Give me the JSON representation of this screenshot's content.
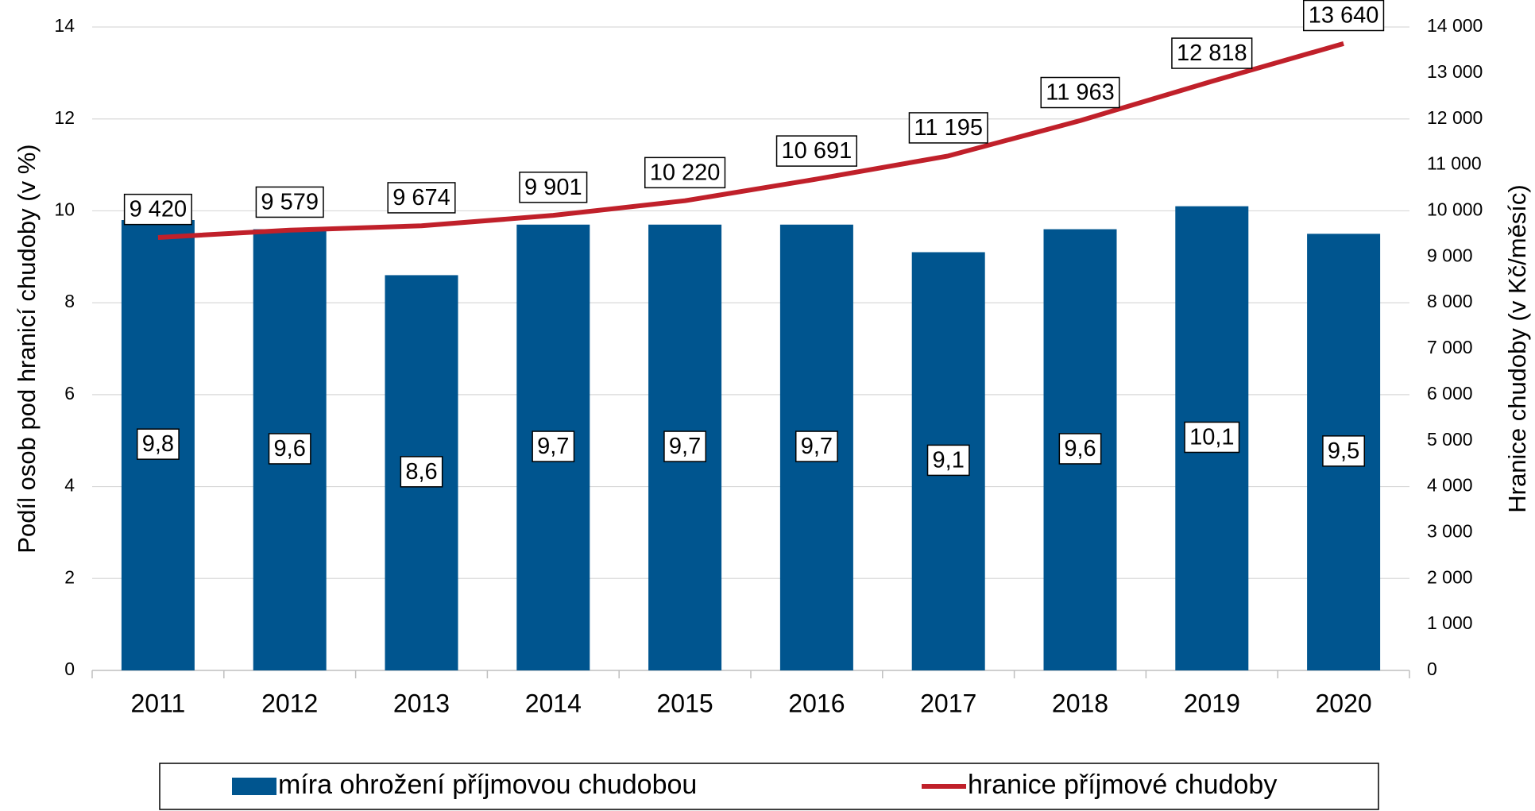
{
  "chart_data": {
    "type": "bar-line",
    "categories": [
      "2011",
      "2012",
      "2013",
      "2014",
      "2015",
      "2016",
      "2017",
      "2018",
      "2019",
      "2020"
    ],
    "y_label": "Podíl osob pod hranicí chudoby (v %)",
    "y2_label": "Hranice chudoby (v Kč/měsíc)",
    "ylim": [
      0,
      14
    ],
    "yticks": [
      0,
      2,
      4,
      6,
      8,
      10,
      12,
      14
    ],
    "y2lim": [
      0,
      14000
    ],
    "y2ticks": [
      0,
      {
        "value": 1000,
        "label": "1 000"
      },
      {
        "value": 2000,
        "label": "2 000"
      },
      {
        "value": 3000,
        "label": "3 000"
      },
      {
        "value": 4000,
        "label": "4 000"
      },
      {
        "value": 5000,
        "label": "5 000"
      },
      {
        "value": 6000,
        "label": "6 000"
      },
      {
        "value": 7000,
        "label": "7 000"
      },
      {
        "value": 8000,
        "label": "8 000"
      },
      {
        "value": 9000,
        "label": "9 000"
      },
      {
        "value": 10000,
        "label": "10 000"
      },
      {
        "value": 11000,
        "label": "11 000"
      },
      {
        "value": 12000,
        "label": "12 000"
      },
      {
        "value": 13000,
        "label": "13 000"
      },
      {
        "value": 14000,
        "label": "14 000"
      }
    ],
    "grid": true,
    "series": [
      {
        "name": "míra ohrožení příjmovou chudobou",
        "type": "bar",
        "color": "#00558f",
        "values": [
          9.8,
          9.6,
          8.6,
          9.7,
          9.7,
          9.7,
          9.1,
          9.6,
          10.1,
          9.5
        ],
        "value_labels": [
          "9,8",
          "9,6",
          "8,6",
          "9,7",
          "9,7",
          "9,7",
          "9,1",
          "9,6",
          "10,1",
          "9,5"
        ]
      },
      {
        "name": "hranice příjmové chudoby",
        "type": "line",
        "axis": "y2",
        "color": "#c0202a",
        "values": [
          9420,
          9579,
          9674,
          9901,
          10220,
          10691,
          11195,
          11963,
          12818,
          13640
        ],
        "value_labels": [
          "9 420",
          "9 579",
          "9 674",
          "9 901",
          "10 220",
          "10 691",
          "11 195",
          "11 963",
          "12 818",
          "13 640"
        ]
      }
    ]
  }
}
